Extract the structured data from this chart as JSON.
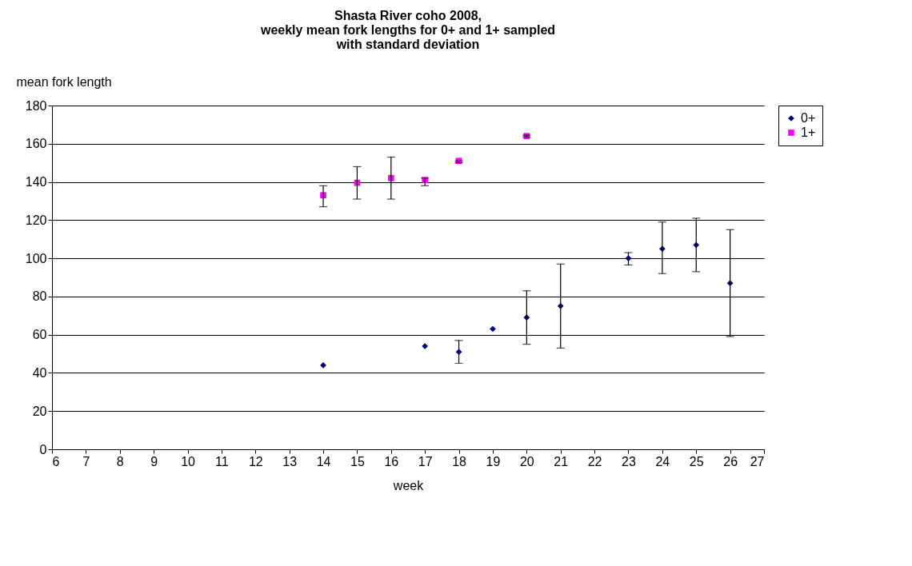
{
  "chart_data": {
    "type": "scatter",
    "title": [
      "Shasta River coho 2008,",
      "weekly mean fork lengths for 0+ and 1+ sampled",
      "with standard deviation"
    ],
    "xlabel": "week",
    "ylabel": "mean fork length",
    "xlim": [
      6,
      27
    ],
    "xticks": [
      6,
      7,
      8,
      9,
      10,
      11,
      12,
      13,
      14,
      15,
      16,
      17,
      18,
      19,
      20,
      21,
      22,
      23,
      24,
      25,
      26,
      27
    ],
    "ylim": [
      0,
      180
    ],
    "yticks": [
      0,
      20,
      40,
      60,
      80,
      100,
      120,
      140,
      160,
      180
    ],
    "grid": "y",
    "legend": "right",
    "series": [
      {
        "name": "0+",
        "color": "#000080",
        "marker": "diamond",
        "x": [
          14,
          17,
          18,
          19,
          20,
          21,
          23,
          24,
          25,
          26
        ],
        "values": [
          44,
          54,
          51,
          63,
          69,
          75,
          100,
          105,
          107,
          87
        ],
        "errors": [
          null,
          null,
          [
            45,
            57
          ],
          null,
          [
            55,
            83
          ],
          [
            53,
            97
          ],
          [
            96.5,
            103
          ],
          [
            92,
            119
          ],
          [
            93,
            121
          ],
          [
            59,
            115
          ]
        ]
      },
      {
        "name": "1+",
        "color": "#ff00ff",
        "marker": "square",
        "x": [
          14,
          15,
          16,
          17,
          18,
          20
        ],
        "values": [
          133,
          139.5,
          142,
          141,
          151,
          164
        ],
        "errors": [
          [
            127,
            138
          ],
          [
            131,
            148
          ],
          [
            131,
            153
          ],
          [
            138,
            142
          ],
          [
            150,
            151
          ],
          [
            163.5,
            164.5
          ]
        ]
      }
    ]
  }
}
